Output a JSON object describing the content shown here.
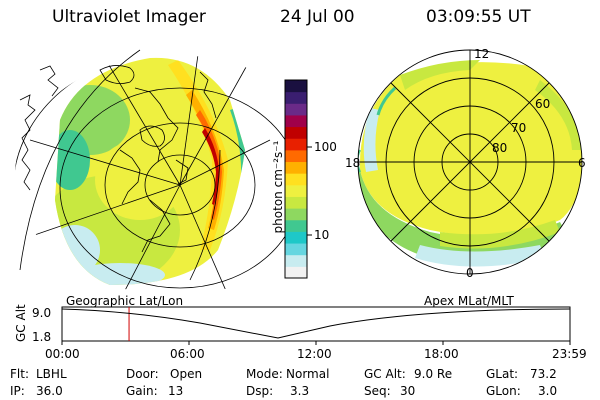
{
  "header": {
    "instrument": "Ultraviolet Imager",
    "date": "24 Jul 00",
    "time": "03:09:55 UT"
  },
  "colorbar": {
    "unit_label": "photon cm⁻²s⁻¹",
    "ticks": [
      "100",
      "10"
    ],
    "colors": [
      "#f2f2f2",
      "#c8ecf0",
      "#66d6e0",
      "#1ec8c8",
      "#40c890",
      "#8ed860",
      "#c8e840",
      "#eef040",
      "#ffe020",
      "#ffb000",
      "#ff6a00",
      "#e82000",
      "#c00000",
      "#a0004a",
      "#6a2a88",
      "#3a1e70",
      "#1a1040"
    ]
  },
  "left_map": {
    "caption": "Geographic Lat/Lon"
  },
  "right_map": {
    "caption": "Apex MLat/MLT",
    "mlt_labels": [
      "12",
      "18",
      "6",
      "0"
    ],
    "lat_labels": [
      "60",
      "70",
      "80"
    ]
  },
  "timeline": {
    "axis_label": "GC Alt",
    "y_labels": [
      "9.0",
      "1.8"
    ],
    "x_labels": [
      "00:00",
      "06:00",
      "12:00",
      "18:00",
      "23:59"
    ],
    "marker_color": "#d00000",
    "marker_time": "03:09:55"
  },
  "info": {
    "flt_label": "Flt:",
    "flt_value": "LBHL",
    "ip_label": "IP:",
    "ip_value": "36.0",
    "door_label": "Door:",
    "door_value": "Open",
    "gain_label": "Gain:",
    "gain_value": "13",
    "mode_label": "Mode:",
    "mode_value": "Normal",
    "dsp_label": "Dsp:",
    "dsp_value": "3.3",
    "gcalt_label": "GC Alt:",
    "gcalt_value": "9.0 Re",
    "seq_label": "Seq:",
    "seq_value": "30",
    "glat_label": "GLat:",
    "glat_value": "73.2",
    "glon_label": "GLon:",
    "glon_value": "3.0"
  }
}
